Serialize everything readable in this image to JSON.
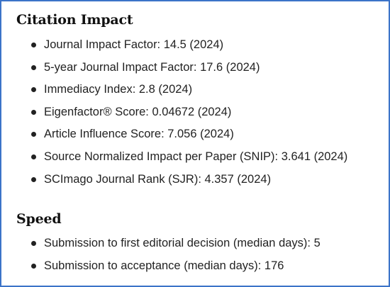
{
  "sections": [
    {
      "title": "Citation Impact",
      "items": [
        "Journal Impact Factor: 14.5 (2024)",
        "5-year Journal Impact Factor: 17.6 (2024)",
        "Immediacy Index: 2.8 (2024)",
        "Eigenfactor® Score: 0.04672 (2024)",
        "Article Influence Score: 7.056 (2024)",
        "Source Normalized Impact per Paper (SNIP): 3.641 (2024)",
        "SCImago Journal Rank (SJR): 4.357 (2024)"
      ]
    },
    {
      "title": "Speed",
      "items": [
        "Submission to first editorial decision (median days): 5",
        "Submission to acceptance (median days): 176"
      ]
    }
  ]
}
